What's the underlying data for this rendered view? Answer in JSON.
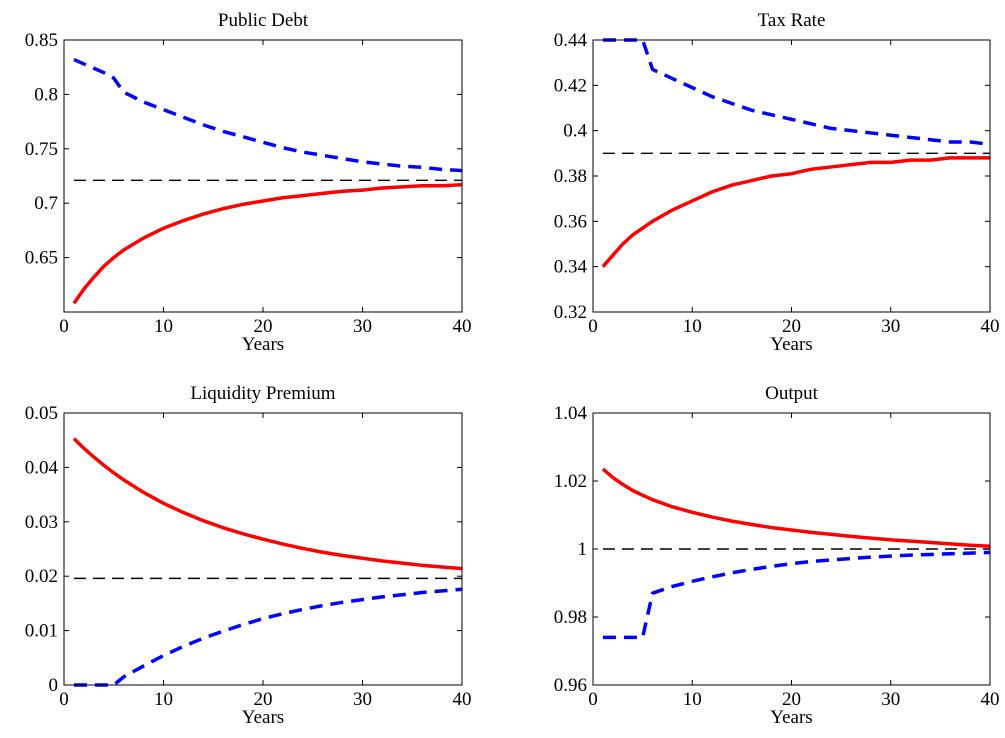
{
  "chart_data": [
    {
      "type": "line",
      "title": "Public Debt",
      "xlabel": "Years",
      "ylabel": "",
      "xlim": [
        0,
        40
      ],
      "ylim": [
        0.6,
        0.85
      ],
      "xticks": [
        0,
        10,
        20,
        30,
        40
      ],
      "xtick_labels": [
        "0",
        "10",
        "20",
        "30",
        "40"
      ],
      "yticks": [
        0.65,
        0.7,
        0.75,
        0.8,
        0.85
      ],
      "ytick_labels": [
        "0.65",
        "0.7",
        "0.75",
        "0.8",
        "0.85"
      ],
      "grid": false,
      "series": [
        {
          "style": "solid",
          "color": "#ff0000",
          "x": [
            1,
            2,
            3,
            4,
            5,
            6,
            8,
            10,
            12,
            14,
            16,
            18,
            20,
            22,
            24,
            26,
            28,
            30,
            32,
            34,
            36,
            38,
            40
          ],
          "y": [
            0.608,
            0.621,
            0.632,
            0.642,
            0.65,
            0.657,
            0.668,
            0.677,
            0.684,
            0.69,
            0.695,
            0.699,
            0.702,
            0.705,
            0.707,
            0.709,
            0.711,
            0.712,
            0.714,
            0.715,
            0.716,
            0.716,
            0.717
          ]
        },
        {
          "style": "dashed",
          "color": "#0000ff",
          "x": [
            1,
            2,
            3,
            4,
            5,
            6,
            8,
            10,
            12,
            14,
            16,
            18,
            20,
            22,
            24,
            26,
            28,
            30,
            32,
            34,
            36,
            38,
            40
          ],
          "y": [
            0.832,
            0.828,
            0.824,
            0.82,
            0.815,
            0.802,
            0.793,
            0.786,
            0.779,
            0.772,
            0.766,
            0.761,
            0.756,
            0.751,
            0.747,
            0.744,
            0.741,
            0.738,
            0.736,
            0.734,
            0.733,
            0.731,
            0.73
          ]
        },
        {
          "style": "dashed-thin",
          "color": "#000000",
          "x": [
            1,
            40
          ],
          "y": [
            0.721,
            0.721
          ]
        }
      ]
    },
    {
      "type": "line",
      "title": "Tax Rate",
      "xlabel": "Years",
      "ylabel": "",
      "xlim": [
        0,
        40
      ],
      "ylim": [
        0.32,
        0.44
      ],
      "xticks": [
        0,
        10,
        20,
        30,
        40
      ],
      "xtick_labels": [
        "0",
        "10",
        "20",
        "30",
        "40"
      ],
      "yticks": [
        0.32,
        0.34,
        0.36,
        0.38,
        0.4,
        0.42,
        0.44
      ],
      "ytick_labels": [
        "0.32",
        "0.34",
        "0.36",
        "0.38",
        "0.4",
        "0.42",
        "0.44"
      ],
      "grid": false,
      "series": [
        {
          "style": "solid",
          "color": "#ff0000",
          "x": [
            1,
            2,
            3,
            4,
            5,
            6,
            8,
            10,
            12,
            14,
            16,
            18,
            20,
            22,
            24,
            26,
            28,
            30,
            32,
            34,
            36,
            38,
            40
          ],
          "y": [
            0.34,
            0.345,
            0.35,
            0.354,
            0.357,
            0.36,
            0.365,
            0.369,
            0.373,
            0.376,
            0.378,
            0.38,
            0.381,
            0.383,
            0.384,
            0.385,
            0.386,
            0.386,
            0.387,
            0.387,
            0.388,
            0.388,
            0.388
          ]
        },
        {
          "style": "dashed",
          "color": "#0000ff",
          "x": [
            1,
            2,
            3,
            4,
            5,
            6,
            8,
            10,
            12,
            14,
            16,
            18,
            20,
            22,
            24,
            26,
            28,
            30,
            32,
            34,
            36,
            38,
            40
          ],
          "y": [
            0.44,
            0.44,
            0.44,
            0.44,
            0.44,
            0.427,
            0.423,
            0.419,
            0.415,
            0.412,
            0.409,
            0.407,
            0.405,
            0.403,
            0.401,
            0.4,
            0.399,
            0.398,
            0.397,
            0.396,
            0.395,
            0.395,
            0.394
          ]
        },
        {
          "style": "dashed-thin",
          "color": "#000000",
          "x": [
            1,
            40
          ],
          "y": [
            0.39,
            0.39
          ]
        }
      ]
    },
    {
      "type": "line",
      "title": "Liquidity Premium",
      "xlabel": "Years",
      "ylabel": "",
      "xlim": [
        0,
        40
      ],
      "ylim": [
        0,
        0.05
      ],
      "xticks": [
        0,
        10,
        20,
        30,
        40
      ],
      "xtick_labels": [
        "0",
        "10",
        "20",
        "30",
        "40"
      ],
      "yticks": [
        0,
        0.01,
        0.02,
        0.03,
        0.04,
        0.05
      ],
      "ytick_labels": [
        "0",
        "0.01",
        "0.02",
        "0.03",
        "0.04",
        "0.05"
      ],
      "grid": false,
      "series": [
        {
          "style": "solid",
          "color": "#ff0000",
          "x": [
            1,
            2,
            3,
            4,
            5,
            6,
            8,
            10,
            12,
            14,
            16,
            18,
            20,
            22,
            24,
            26,
            28,
            30,
            32,
            34,
            36,
            38,
            40
          ],
          "y": [
            0.0453,
            0.0435,
            0.0419,
            0.0404,
            0.039,
            0.0377,
            0.0354,
            0.0334,
            0.0317,
            0.0302,
            0.0289,
            0.0278,
            0.0268,
            0.0259,
            0.0251,
            0.0244,
            0.0238,
            0.0233,
            0.0228,
            0.0224,
            0.022,
            0.0217,
            0.0214
          ]
        },
        {
          "style": "dashed",
          "color": "#0000ff",
          "x": [
            1,
            2,
            3,
            4,
            5,
            6,
            8,
            10,
            12,
            14,
            16,
            18,
            20,
            22,
            24,
            26,
            28,
            30,
            32,
            34,
            36,
            38,
            40
          ],
          "y": [
            0,
            0,
            0,
            0,
            0,
            0.0015,
            0.0035,
            0.0054,
            0.0071,
            0.0086,
            0.0099,
            0.0111,
            0.0122,
            0.0131,
            0.0139,
            0.0146,
            0.0152,
            0.0157,
            0.0162,
            0.0166,
            0.017,
            0.0173,
            0.0176
          ]
        },
        {
          "style": "dashed-thin",
          "color": "#000000",
          "x": [
            1,
            40
          ],
          "y": [
            0.0196,
            0.0196
          ]
        }
      ]
    },
    {
      "type": "line",
      "title": "Output",
      "xlabel": "Years",
      "ylabel": "",
      "xlim": [
        0,
        40
      ],
      "ylim": [
        0.96,
        1.04
      ],
      "xticks": [
        0,
        10,
        20,
        30,
        40
      ],
      "xtick_labels": [
        "0",
        "10",
        "20",
        "30",
        "40"
      ],
      "yticks": [
        0.96,
        0.98,
        1,
        1.02,
        1.04
      ],
      "ytick_labels": [
        "0.96",
        "0.98",
        "1",
        "1.02",
        "1.04"
      ],
      "grid": false,
      "series": [
        {
          "style": "solid",
          "color": "#ff0000",
          "x": [
            1,
            2,
            3,
            4,
            5,
            6,
            8,
            10,
            12,
            14,
            16,
            18,
            20,
            22,
            24,
            26,
            28,
            30,
            32,
            34,
            36,
            38,
            40
          ],
          "y": [
            1.0235,
            1.021,
            1.019,
            1.0172,
            1.0158,
            1.0145,
            1.0124,
            1.0108,
            1.0094,
            1.0082,
            1.0072,
            1.0063,
            1.0056,
            1.0049,
            1.0043,
            1.0037,
            1.0032,
            1.0027,
            1.0023,
            1.0019,
            1.0015,
            1.0011,
            1.0008
          ]
        },
        {
          "style": "dashed",
          "color": "#0000ff",
          "x": [
            1,
            2,
            3,
            4,
            5,
            6,
            8,
            10,
            12,
            14,
            16,
            18,
            20,
            22,
            24,
            26,
            28,
            30,
            32,
            34,
            36,
            38,
            40
          ],
          "y": [
            0.974,
            0.974,
            0.974,
            0.974,
            0.974,
            0.987,
            0.989,
            0.9905,
            0.9918,
            0.993,
            0.994,
            0.9949,
            0.9957,
            0.9963,
            0.9968,
            0.9972,
            0.9976,
            0.9979,
            0.9982,
            0.9984,
            0.9986,
            0.9988,
            0.999
          ]
        },
        {
          "style": "dashed-thin",
          "color": "#000000",
          "x": [
            1,
            40
          ],
          "y": [
            1.0,
            1.0
          ]
        }
      ]
    }
  ]
}
